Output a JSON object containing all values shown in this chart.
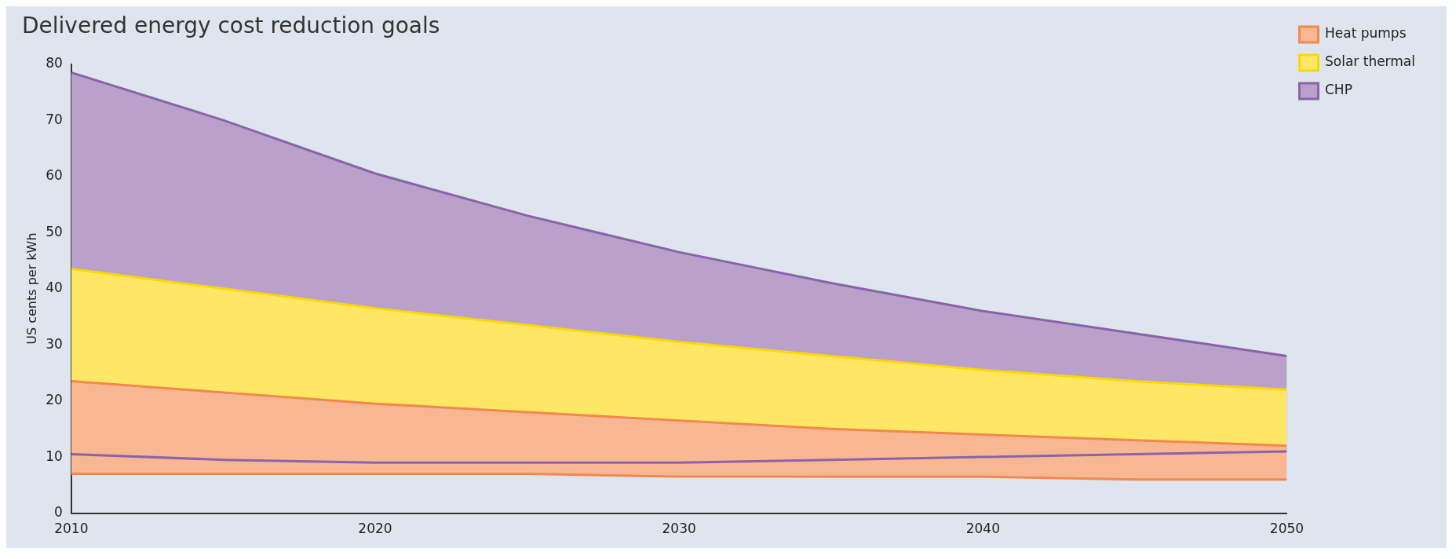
{
  "chart_data": {
    "type": "area",
    "title": "Delivered energy cost reduction goals",
    "ylabel": "US cents per kWh",
    "x": [
      2010,
      2015,
      2020,
      2025,
      2030,
      2035,
      2040,
      2045,
      2050
    ],
    "series": [
      {
        "type": "line",
        "color": "#8a63a8",
        "values": [
          10.5,
          9.5,
          9,
          9,
          9,
          9.5,
          10,
          10.5,
          11
        ]
      },
      {
        "name": "CHP",
        "color": "#8a63a8",
        "values": [
          78.5,
          70,
          60.5,
          53,
          46.5,
          41,
          36,
          32,
          28
        ]
      },
      {
        "name": "Solar thermal",
        "color": "#ffd700",
        "values": [
          43.5,
          40,
          36.5,
          33.5,
          30.5,
          28,
          25.5,
          23.5,
          22
        ]
      },
      {
        "type": "line",
        "color": "#f4874b",
        "values": [
          7,
          7,
          7,
          7,
          6.5,
          6.5,
          6.5,
          6,
          6
        ]
      },
      {
        "name": "Heat pumps",
        "color": "#f4874b",
        "values": [
          23.5,
          21.5,
          19.5,
          18,
          16.5,
          15,
          14,
          13,
          12
        ]
      }
    ],
    "xlim": [
      2010,
      2050
    ],
    "xticks": [
      2010,
      2020,
      2030,
      2040,
      2050
    ],
    "ylim": [
      0,
      80
    ],
    "yticks": [
      0,
      10,
      20,
      30,
      40,
      50,
      60,
      70,
      80
    ],
    "grid": false,
    "legend": "top right"
  }
}
